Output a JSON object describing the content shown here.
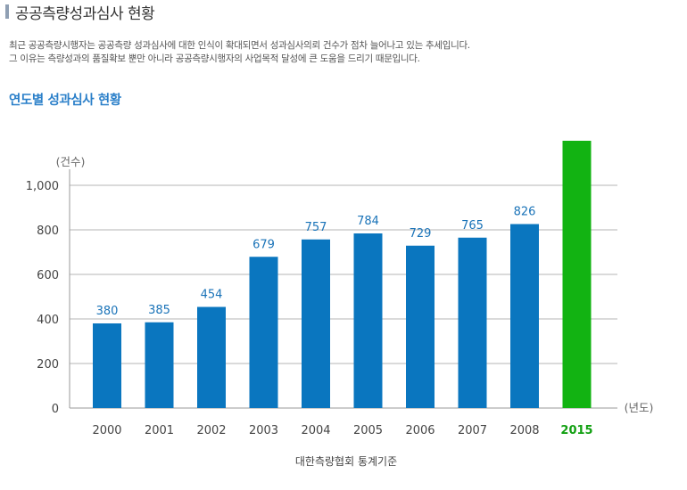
{
  "page": {
    "title": "공공측량성과심사 현황",
    "intro_lines": [
      "최근 공공측량시행자는 공공측량 성과심사에 대한 인식이 확대되면서 성과심사의뢰 건수가 점차 늘어나고 있는 추세입니다.",
      "그 이유는 측량성과의 품질확보 뿐만 아니라 공공측량시행자의 사업목적 달성에 큰 도움을 드리기 때문입니다."
    ],
    "section_title": "연도별 성과심사 현황"
  },
  "chart_data": {
    "type": "bar",
    "categories": [
      "2000",
      "2001",
      "2002",
      "2003",
      "2004",
      "2005",
      "2006",
      "2007",
      "2008",
      "2015"
    ],
    "values": [
      380,
      385,
      454,
      679,
      757,
      784,
      729,
      765,
      826,
      1200
    ],
    "data_labels": [
      "380",
      "385",
      "454",
      "679",
      "757",
      "784",
      "729",
      "765",
      "826",
      ""
    ],
    "highlight_category": "2015",
    "ylabel": "(건수)",
    "xlabel": "(년도)",
    "yticks": [
      0,
      200,
      400,
      600,
      800,
      1000
    ],
    "ytick_labels": [
      "0",
      "200",
      "400",
      "600",
      "800",
      "1,000"
    ],
    "ylim": [
      0,
      1200
    ],
    "grid": true,
    "source": "대한측량협회 통계기준",
    "colors": {
      "bar": "#0a76bf",
      "highlight": "#12b312",
      "label": "#1a73b8",
      "highlight_label": "#12a012",
      "grid": "#b4b4b4"
    }
  }
}
